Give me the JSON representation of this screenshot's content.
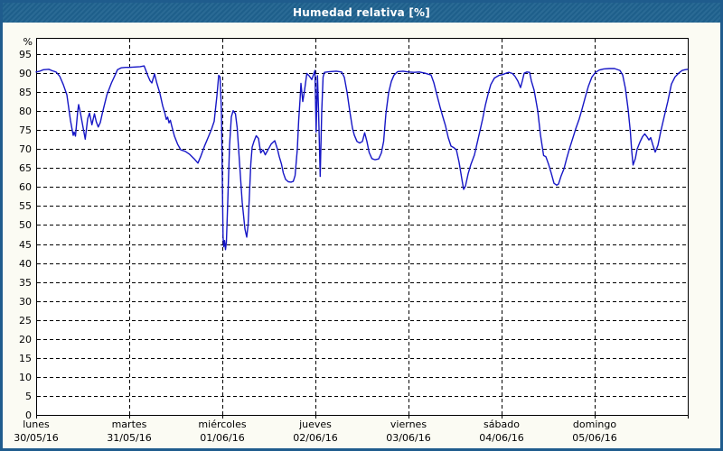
{
  "window": {
    "title": "Humedad relativa [%]"
  },
  "colors": {
    "frame": "#1f5c8d",
    "titlebar_bg": "#1f628f",
    "title_text": "#ffffff",
    "content_bg": "#fbfbf3",
    "plot_bg": "#ffffff",
    "plot_border": "#000000",
    "grid": "#000000",
    "line": "#1616c6",
    "label_text": "#000000"
  },
  "chart_data": {
    "type": "line",
    "title": "Humedad relativa [%]",
    "ylabel": "%",
    "xlabel": "",
    "legend_position": "none",
    "grid": "dashed horizontal every 5%, dashed vertical at each day boundary",
    "ylim": [
      0,
      100
    ],
    "x_range_hours": [
      0,
      168
    ],
    "y_ticks": [
      0,
      5,
      10,
      15,
      20,
      25,
      30,
      35,
      40,
      45,
      50,
      55,
      60,
      65,
      70,
      75,
      80,
      85,
      90,
      95
    ],
    "y_unit_label": "%",
    "x_days": [
      {
        "name": "lunes",
        "date": "30/05/16"
      },
      {
        "name": "martes",
        "date": "31/05/16"
      },
      {
        "name": "miércoles",
        "date": "01/06/16"
      },
      {
        "name": "jueves",
        "date": "02/06/16"
      },
      {
        "name": "viernes",
        "date": "03/06/16"
      },
      {
        "name": "sábado",
        "date": "04/06/16"
      },
      {
        "name": "domingo",
        "date": "05/06/16"
      }
    ],
    "series": [
      {
        "name": "Humedad relativa",
        "unit": "%",
        "x_unit": "hours since 30/05/16 00:00",
        "points": [
          [
            0,
            90.3
          ],
          [
            0.93,
            90.5
          ],
          [
            1.86,
            90.9
          ],
          [
            3.26,
            91
          ],
          [
            4.19,
            90.6
          ],
          [
            5.13,
            90.3
          ],
          [
            6.06,
            89.2
          ],
          [
            6.99,
            87
          ],
          [
            7.92,
            84.3
          ],
          [
            8.85,
            77.5
          ],
          [
            9.55,
            73.6
          ],
          [
            9.79,
            74.5
          ],
          [
            10.14,
            73.4
          ],
          [
            10.72,
            80
          ],
          [
            10.95,
            81.7
          ],
          [
            11.42,
            79.5
          ],
          [
            12.12,
            75.6
          ],
          [
            12.65,
            72.6
          ],
          [
            13.28,
            78
          ],
          [
            13.75,
            79.5
          ],
          [
            14.38,
            76.4
          ],
          [
            15.03,
            79.3
          ],
          [
            15.49,
            77.2
          ],
          [
            16.01,
            75.8
          ],
          [
            16.54,
            77
          ],
          [
            17.08,
            79.5
          ],
          [
            18.24,
            84.3
          ],
          [
            19.41,
            87.4
          ],
          [
            20.27,
            89.3
          ],
          [
            20.97,
            90.9
          ],
          [
            21.9,
            91.4
          ],
          [
            23.07,
            91.5
          ],
          [
            24,
            91.5
          ],
          [
            25.4,
            91.6
          ],
          [
            26.79,
            91.7
          ],
          [
            27.84,
            91.9
          ],
          [
            28.77,
            89.4
          ],
          [
            29.36,
            88
          ],
          [
            29.82,
            87.4
          ],
          [
            30.52,
            89.8
          ],
          [
            31.11,
            87.4
          ],
          [
            31.92,
            84.6
          ],
          [
            32.62,
            81.4
          ],
          [
            33.21,
            79.4
          ],
          [
            33.56,
            77.8
          ],
          [
            33.9,
            78.4
          ],
          [
            34.25,
            76.9
          ],
          [
            34.6,
            77.6
          ],
          [
            34.95,
            76.1
          ],
          [
            35.65,
            73.4
          ],
          [
            36.46,
            71.3
          ],
          [
            37.28,
            69.8
          ],
          [
            38.45,
            69.4
          ],
          [
            39.61,
            68.6
          ],
          [
            40.78,
            67.4
          ],
          [
            41.71,
            66.3
          ],
          [
            42.41,
            68
          ],
          [
            43.34,
            70.6
          ],
          [
            44.27,
            72.9
          ],
          [
            45.2,
            75.2
          ],
          [
            45.9,
            77.3
          ],
          [
            46.6,
            84
          ],
          [
            47.07,
            89.4
          ],
          [
            47.42,
            89
          ],
          [
            47.77,
            80
          ],
          [
            48,
            62
          ],
          [
            48.19,
            47
          ],
          [
            48.35,
            44.3
          ],
          [
            48.58,
            45.9
          ],
          [
            48.82,
            43.5
          ],
          [
            49.05,
            45.5
          ],
          [
            49.4,
            56
          ],
          [
            49.86,
            71
          ],
          [
            50.33,
            78.5
          ],
          [
            50.79,
            80.1
          ],
          [
            51.38,
            79.3
          ],
          [
            51.84,
            75.5
          ],
          [
            52.43,
            66.5
          ],
          [
            53.13,
            56
          ],
          [
            53.82,
            49
          ],
          [
            54.29,
            46.8
          ],
          [
            54.64,
            50
          ],
          [
            54.99,
            58
          ],
          [
            55.34,
            66
          ],
          [
            55.69,
            70.5
          ],
          [
            56.15,
            72
          ],
          [
            56.74,
            73.5
          ],
          [
            57.32,
            72.8
          ],
          [
            57.9,
            69
          ],
          [
            58.48,
            69.8
          ],
          [
            59.07,
            68.5
          ],
          [
            59.88,
            70
          ],
          [
            60.58,
            71.3
          ],
          [
            61.51,
            72.2
          ],
          [
            62.21,
            70
          ],
          [
            62.68,
            68
          ],
          [
            63.26,
            66
          ],
          [
            63.73,
            63.7
          ],
          [
            64.31,
            62
          ],
          [
            65.01,
            61.4
          ],
          [
            65.71,
            61.3
          ],
          [
            66.29,
            61.5
          ],
          [
            66.76,
            63
          ],
          [
            67.34,
            70
          ],
          [
            67.69,
            77.6
          ],
          [
            68.04,
            83
          ],
          [
            68.27,
            87.3
          ],
          [
            68.74,
            82.5
          ],
          [
            69.2,
            85.5
          ],
          [
            69.79,
            89.9
          ],
          [
            70.37,
            89.3
          ],
          [
            71.07,
            88.3
          ],
          [
            71.88,
            90.7
          ],
          [
            72.19,
            74.5
          ],
          [
            72.54,
            89.3
          ],
          [
            72.82,
            80
          ],
          [
            73.24,
            62.8
          ],
          [
            73.63,
            80
          ],
          [
            73.98,
            89
          ],
          [
            74.33,
            90.2
          ],
          [
            75.73,
            90.4
          ],
          [
            77.36,
            90.5
          ],
          [
            78.76,
            90.3
          ],
          [
            79.46,
            88.9
          ],
          [
            80.16,
            85
          ],
          [
            80.86,
            80
          ],
          [
            81.56,
            75.5
          ],
          [
            82.02,
            73.7
          ],
          [
            82.72,
            72
          ],
          [
            83.42,
            71.6
          ],
          [
            84.12,
            72
          ],
          [
            84.7,
            74.3
          ],
          [
            85.28,
            72
          ],
          [
            85.86,
            69.1
          ],
          [
            86.56,
            67.5
          ],
          [
            87.38,
            67.2
          ],
          [
            88.31,
            67.4
          ],
          [
            89.01,
            69
          ],
          [
            89.59,
            72
          ],
          [
            90.17,
            79.3
          ],
          [
            90.87,
            84.8
          ],
          [
            91.57,
            87.8
          ],
          [
            92.27,
            89.5
          ],
          [
            93.2,
            90.4
          ],
          [
            94.6,
            90.5
          ],
          [
            96,
            90.3
          ],
          [
            97.4,
            90.2
          ],
          [
            98.8,
            90.3
          ],
          [
            100.2,
            90
          ],
          [
            101.83,
            89.5
          ],
          [
            102.53,
            87.5
          ],
          [
            103.23,
            84.7
          ],
          [
            104.16,
            81
          ],
          [
            104.86,
            78.5
          ],
          [
            105.56,
            76.1
          ],
          [
            106.26,
            73
          ],
          [
            106.96,
            70.8
          ],
          [
            107.66,
            70.4
          ],
          [
            108.36,
            69.8
          ],
          [
            109.06,
            66.5
          ],
          [
            109.76,
            62
          ],
          [
            110.22,
            59.4
          ],
          [
            110.69,
            60.2
          ],
          [
            111.39,
            63.5
          ],
          [
            112.09,
            66
          ],
          [
            113.02,
            68.5
          ],
          [
            114.19,
            73.8
          ],
          [
            115.12,
            78
          ],
          [
            115.82,
            81.6
          ],
          [
            116.52,
            84.5
          ],
          [
            117.22,
            87
          ],
          [
            118.15,
            88.7
          ],
          [
            119.32,
            89.4
          ],
          [
            120.25,
            89.6
          ],
          [
            121.18,
            90
          ],
          [
            121.86,
            90.2
          ],
          [
            122.79,
            89.9
          ],
          [
            123.49,
            89.1
          ],
          [
            124.19,
            87.9
          ],
          [
            124.89,
            86.2
          ],
          [
            125.36,
            88
          ],
          [
            125.82,
            90
          ],
          [
            126.52,
            90.3
          ],
          [
            127.22,
            90.2
          ],
          [
            127.69,
            87.9
          ],
          [
            128.39,
            85.5
          ],
          [
            129.32,
            80.1
          ],
          [
            130.02,
            73.8
          ],
          [
            130.84,
            68.3
          ],
          [
            131.42,
            68
          ],
          [
            132.12,
            66
          ],
          [
            132.82,
            63.6
          ],
          [
            133.52,
            61
          ],
          [
            134.22,
            60.5
          ],
          [
            134.68,
            60.8
          ],
          [
            135.38,
            63
          ],
          [
            136.08,
            64.8
          ],
          [
            136.78,
            67.5
          ],
          [
            137.48,
            70
          ],
          [
            138.41,
            73
          ],
          [
            139.11,
            75.3
          ],
          [
            140.04,
            78
          ],
          [
            140.74,
            80.5
          ],
          [
            141.67,
            84
          ],
          [
            142.37,
            86.5
          ],
          [
            143.3,
            89
          ],
          [
            144.23,
            90.2
          ],
          [
            145.17,
            90.8
          ],
          [
            146.33,
            91.1
          ],
          [
            147.73,
            91.2
          ],
          [
            149.12,
            91.2
          ],
          [
            150.52,
            90.7
          ],
          [
            151.22,
            89.5
          ],
          [
            151.92,
            86
          ],
          [
            152.62,
            80.5
          ],
          [
            153.2,
            74.5
          ],
          [
            153.55,
            69.5
          ],
          [
            153.9,
            65.8
          ],
          [
            154.48,
            67.5
          ],
          [
            154.94,
            70
          ],
          [
            155.64,
            71.8
          ],
          [
            156.34,
            73.3
          ],
          [
            156.92,
            74
          ],
          [
            157.51,
            73.2
          ],
          [
            157.97,
            72.4
          ],
          [
            158.44,
            73
          ],
          [
            159.02,
            71
          ],
          [
            159.6,
            69.2
          ],
          [
            160.3,
            71
          ],
          [
            161,
            74.5
          ],
          [
            161.93,
            78.5
          ],
          [
            162.86,
            82.5
          ],
          [
            163.79,
            87.1
          ],
          [
            164.72,
            89
          ],
          [
            165.65,
            90
          ],
          [
            166.58,
            90.7
          ],
          [
            167.28,
            90.9
          ],
          [
            167.98,
            91
          ]
        ]
      }
    ]
  }
}
